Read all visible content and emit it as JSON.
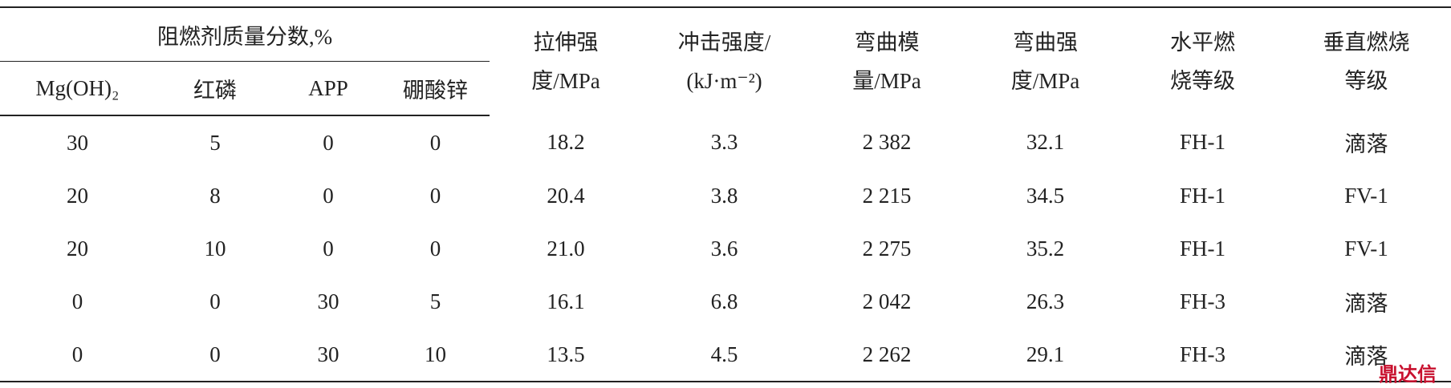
{
  "table": {
    "group_header": "阻燃剂质量分数,%",
    "sub_headers": [
      "Mg(OH)₂",
      "红磷",
      "APP",
      "硼酸锌"
    ],
    "headers": [
      [
        "拉伸强",
        "度/MPa"
      ],
      [
        "冲击强度/",
        "(kJ·m⁻²)"
      ],
      [
        "弯曲模",
        "量/MPa"
      ],
      [
        "弯曲强",
        "度/MPa"
      ],
      [
        "水平燃",
        "烧等级"
      ],
      [
        "垂直燃烧",
        "等级"
      ]
    ],
    "rows": [
      [
        "30",
        "5",
        "0",
        "0",
        "18.2",
        "3.3",
        "2 382",
        "32.1",
        "FH-1",
        "滴落"
      ],
      [
        "20",
        "8",
        "0",
        "0",
        "20.4",
        "3.8",
        "2 215",
        "34.5",
        "FH-1",
        "FV-1"
      ],
      [
        "20",
        "10",
        "0",
        "0",
        "21.0",
        "3.6",
        "2 275",
        "35.2",
        "FH-1",
        "FV-1"
      ],
      [
        "0",
        "0",
        "30",
        "5",
        "16.1",
        "6.8",
        "2 042",
        "26.3",
        "FH-3",
        "滴落"
      ],
      [
        "0",
        "0",
        "30",
        "10",
        "13.5",
        "4.5",
        "2 262",
        "29.1",
        "FH-3",
        "滴落"
      ]
    ]
  },
  "watermark": "鼎达信"
}
